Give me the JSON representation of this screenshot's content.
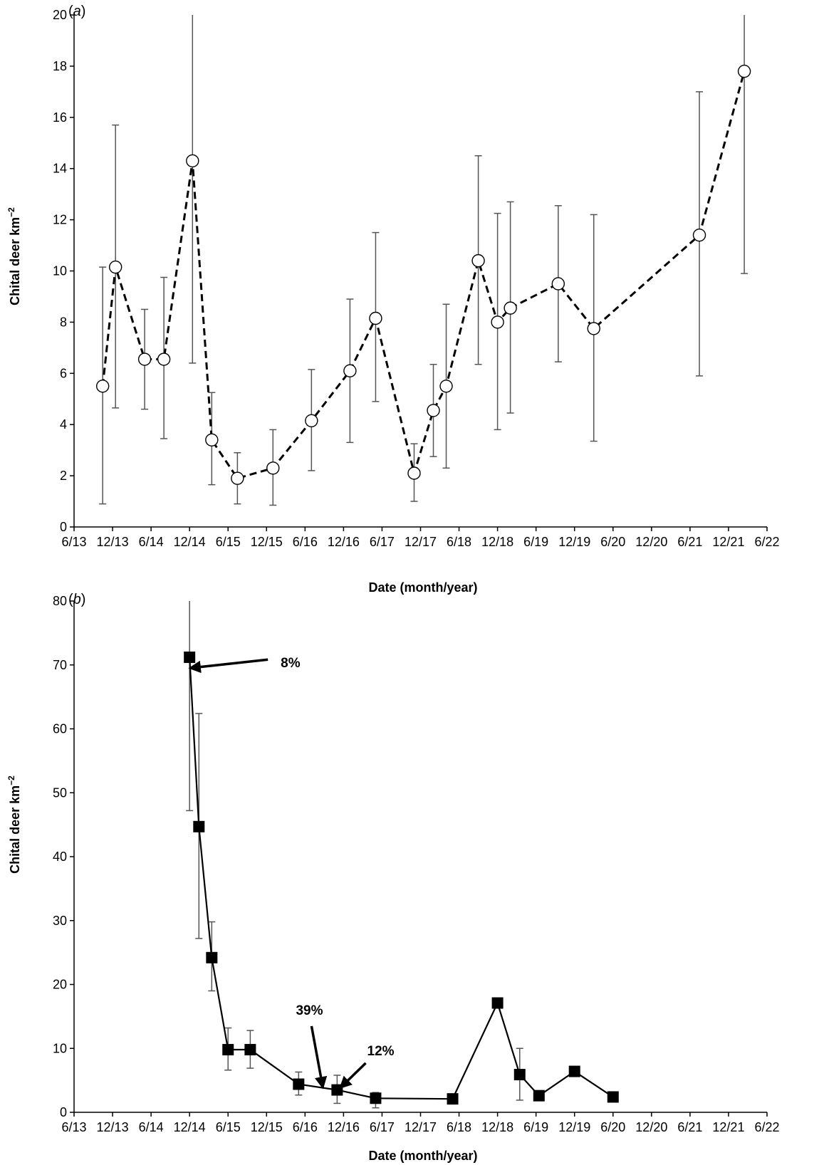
{
  "chart_data": [
    {
      "type": "line",
      "panel_label_prefix": "(",
      "panel_letter": "a",
      "panel_label_suffix": ")",
      "xlabel": "Date (month/year)",
      "ylabel": "Chital deer km",
      "ylabel_sup": "−2",
      "x_ticks": [
        "6/13",
        "12/13",
        "6/14",
        "12/14",
        "6/15",
        "12/15",
        "6/16",
        "12/16",
        "6/17",
        "12/17",
        "6/18",
        "12/18",
        "6/19",
        "12/19",
        "6/20",
        "12/20",
        "6/21",
        "12/21",
        "6/22"
      ],
      "xlim": [
        "6/13",
        "6/22"
      ],
      "ylim": [
        0,
        20
      ],
      "y_ticks": [
        0,
        2,
        4,
        6,
        8,
        10,
        12,
        14,
        16,
        18,
        20
      ],
      "grid": false,
      "series": [
        {
          "marker": "open-circle",
          "line": "dashed",
          "x": [
            "2013-10-15",
            "2013-12-15",
            "2014-05-01",
            "2014-08-01",
            "2014-12-15",
            "2015-03-15",
            "2015-07-15",
            "2016-01-01",
            "2016-07-01",
            "2017-01-01",
            "2017-05-01",
            "2017-11-01",
            "2018-02-01",
            "2018-04-01",
            "2018-09-01",
            "2018-12-01",
            "2019-02-01",
            "2019-09-15",
            "2020-03-01",
            "2021-07-15",
            "2022-02-15"
          ],
          "y": [
            5.5,
            10.15,
            6.55,
            6.55,
            14.3,
            3.4,
            1.9,
            2.3,
            4.15,
            6.1,
            8.15,
            2.1,
            4.55,
            5.5,
            10.4,
            8.0,
            8.55,
            9.5,
            7.75,
            11.4,
            17.8
          ],
          "error_low": [
            0.9,
            4.65,
            4.6,
            3.45,
            6.4,
            1.65,
            0.9,
            0.85,
            2.2,
            3.3,
            4.9,
            1.0,
            2.75,
            2.3,
            6.35,
            3.8,
            4.45,
            6.45,
            3.35,
            5.9,
            9.9
          ],
          "error_high": [
            10.15,
            15.7,
            8.5,
            9.75,
            20.0,
            5.25,
            2.9,
            3.8,
            6.15,
            8.9,
            11.5,
            3.25,
            6.35,
            8.7,
            14.5,
            12.25,
            12.7,
            12.55,
            12.2,
            17.0,
            20.0
          ]
        }
      ]
    },
    {
      "type": "line",
      "panel_label_prefix": "(",
      "panel_letter": "b",
      "panel_label_suffix": ")",
      "xlabel": "Date (month/year)",
      "ylabel": "Chital deer km",
      "ylabel_sup": "−2",
      "x_ticks": [
        "6/13",
        "12/13",
        "6/14",
        "12/14",
        "6/15",
        "12/15",
        "6/16",
        "12/16",
        "6/17",
        "12/17",
        "6/18",
        "12/18",
        "6/19",
        "12/19",
        "6/20",
        "12/20",
        "6/21",
        "12/21",
        "6/22"
      ],
      "xlim": [
        "6/13",
        "6/22"
      ],
      "ylim": [
        0,
        80
      ],
      "y_ticks": [
        0,
        10,
        20,
        30,
        40,
        50,
        60,
        70,
        80
      ],
      "grid": false,
      "series": [
        {
          "marker": "filled-square",
          "line": "solid",
          "x": [
            "2014-12-01",
            "2015-01-15",
            "2015-03-15",
            "2015-06-01",
            "2015-09-15",
            "2016-05-01",
            "2016-11-01",
            "2017-05-01",
            "2018-05-01",
            "2018-12-01",
            "2019-03-15",
            "2019-06-15",
            "2019-12-01",
            "2020-06-01"
          ],
          "y": [
            71.2,
            44.7,
            24.2,
            9.8,
            9.8,
            4.4,
            3.5,
            2.2,
            2.1,
            17.1,
            5.9,
            2.6,
            6.4,
            2.4
          ],
          "error_low": [
            47.2,
            27.2,
            19.0,
            6.6,
            6.9,
            2.7,
            1.4,
            0.7,
            null,
            null,
            1.9,
            null,
            null,
            null
          ],
          "error_high": [
            80.0,
            62.4,
            29.8,
            13.2,
            12.8,
            6.3,
            5.8,
            3.1,
            null,
            null,
            10.0,
            null,
            null,
            null
          ]
        }
      ],
      "annotations": [
        {
          "text": "8%",
          "tip_x": "2014-12-01",
          "tip_y": 69.5
        },
        {
          "text": "39%",
          "tip_x": "2016-08-25",
          "tip_y": 3.8
        },
        {
          "text": "12%",
          "tip_x": "2016-11-15",
          "tip_y": 3.8
        }
      ]
    }
  ]
}
